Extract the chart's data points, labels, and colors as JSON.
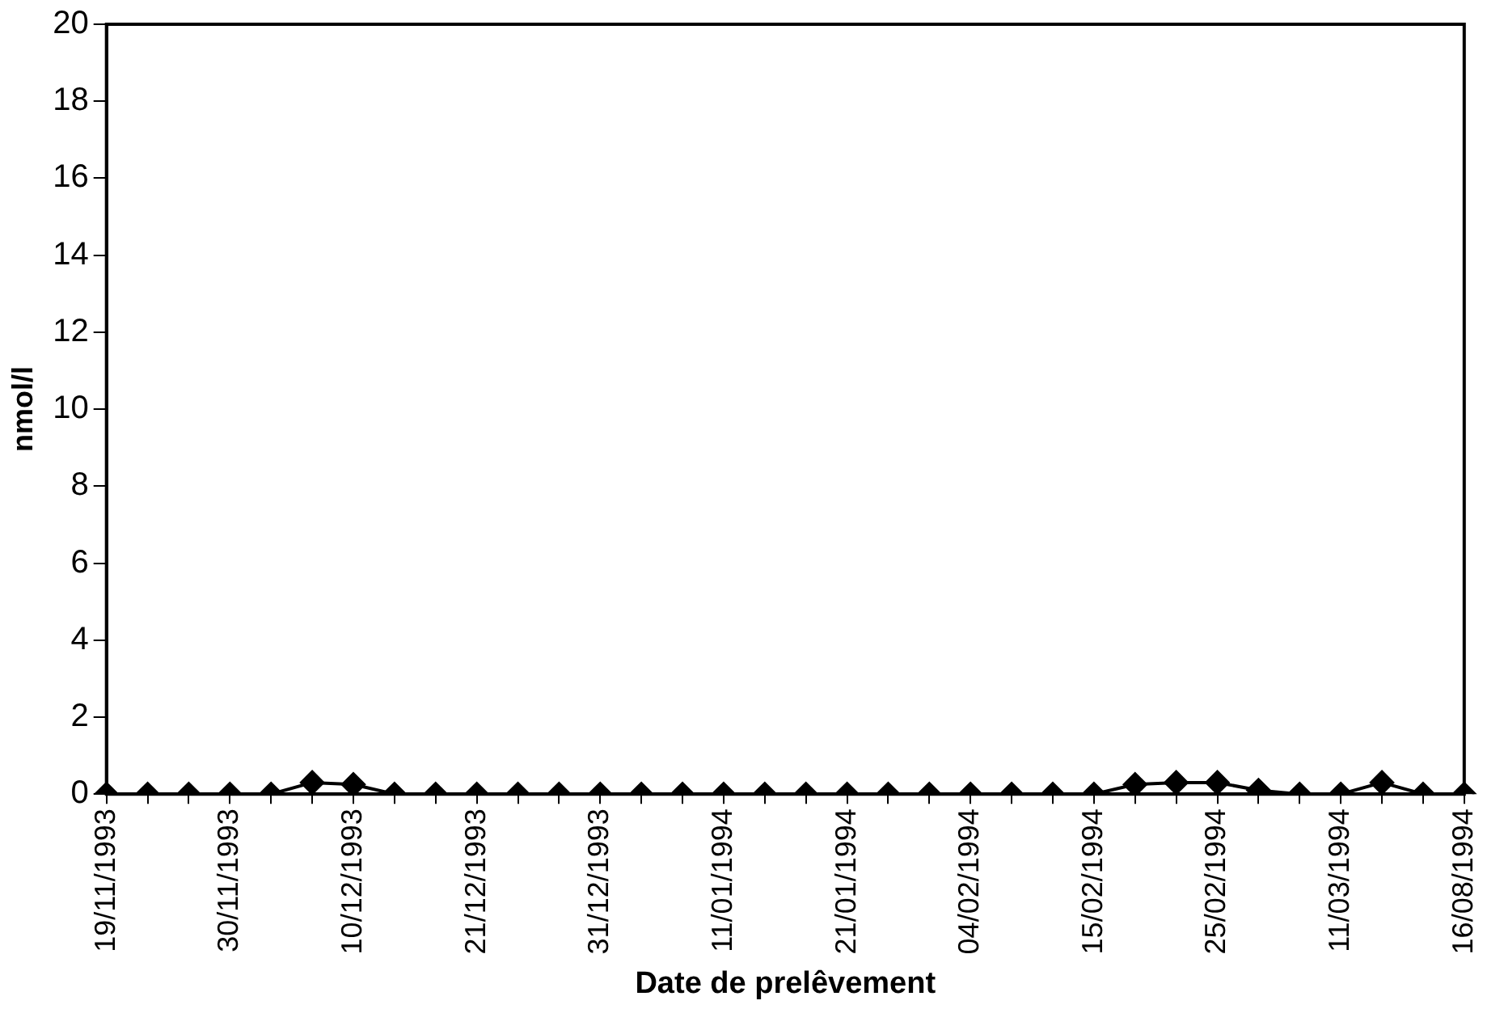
{
  "chart_data": {
    "type": "line",
    "xlabel": "Date de prelêvement",
    "ylabel": "nmol/l",
    "categories": [
      "19/11/1993",
      null,
      null,
      "30/11/1993",
      null,
      null,
      "10/12/1993",
      null,
      null,
      "21/12/1993",
      null,
      null,
      "31/12/1993",
      null,
      null,
      "11/01/1994",
      null,
      null,
      "21/01/1994",
      null,
      null,
      "04/02/1994",
      null,
      null,
      "15/02/1994",
      null,
      null,
      "25/02/1994",
      null,
      null,
      "11/03/1994",
      null,
      null,
      "16/08/1994"
    ],
    "series": [
      {
        "color": "#000000",
        "values": [
          0,
          0,
          0,
          0,
          0,
          0.3,
          0.25,
          0,
          0,
          0,
          0,
          0,
          0,
          0,
          0,
          0,
          0,
          0,
          0,
          0,
          0,
          0,
          0,
          0,
          0,
          0.25,
          0.3,
          0.3,
          0.1,
          0,
          0,
          0.3,
          0,
          0
        ]
      }
    ],
    "ylim": [
      0,
      20
    ],
    "yticks": [
      0,
      2,
      4,
      6,
      8,
      10,
      12,
      14,
      16,
      18,
      20
    ],
    "grid": false,
    "legend": false,
    "marker": "diamond",
    "line_style": "solid"
  }
}
